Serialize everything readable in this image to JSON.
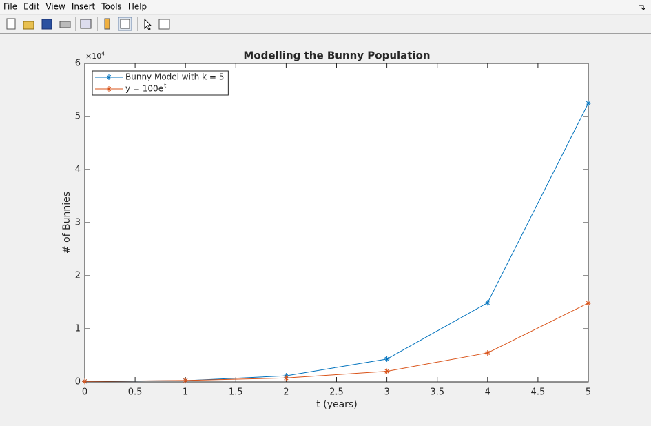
{
  "menu": [
    "File",
    "Edit",
    "View",
    "Insert",
    "Tools",
    "Help"
  ],
  "chart_data": {
    "type": "line",
    "title": "Modelling the Bunny Population",
    "x_label": "t (years)",
    "y_label": "# of Bunnies",
    "y_exponent": "×10",
    "y_exponent_power": "4",
    "x": [
      0,
      1,
      2,
      3,
      4,
      5
    ],
    "series": [
      {
        "name": "Bunny Model with k = 5",
        "color": "#0072bd",
        "values": [
          100,
          250,
          1150,
          4300,
          14900,
          52500
        ]
      },
      {
        "name": "y  =  100e",
        "name_superscript": "t",
        "color": "#d95319",
        "values": [
          100,
          270,
          740,
          2000,
          5460,
          14840
        ]
      }
    ],
    "marker": "asterisk",
    "xlim": [
      0,
      5
    ],
    "xticks": [
      0,
      0.5,
      1,
      1.5,
      2,
      2.5,
      3,
      3.5,
      4,
      4.5,
      5
    ],
    "ylim": [
      0,
      60000
    ],
    "yticks": [
      {
        "value": 0,
        "label": "0"
      },
      {
        "value": 10000,
        "label": "1"
      },
      {
        "value": 20000,
        "label": "2"
      },
      {
        "value": 30000,
        "label": "3"
      },
      {
        "value": 40000,
        "label": "4"
      },
      {
        "value": 50000,
        "label": "5"
      },
      {
        "value": 60000,
        "label": "6"
      }
    ],
    "legend": "upper left",
    "grid": false
  }
}
